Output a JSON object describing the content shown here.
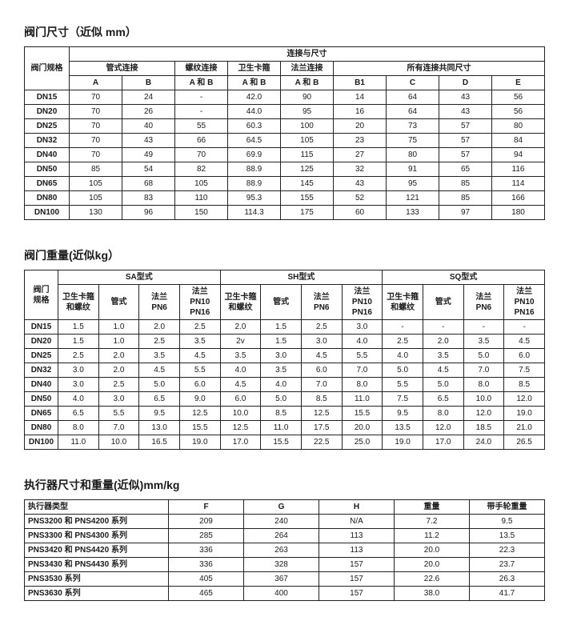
{
  "section1": {
    "title": "阀门尺寸（近似 mm）",
    "corner": "阀门规格",
    "group_top": "连接与尺寸",
    "groups": [
      "管式连接",
      "螺纹连接",
      "卫生卡箍",
      "法兰连接",
      "所有连接共同尺寸"
    ],
    "sub": [
      "A",
      "B",
      "A 和 B",
      "A 和 B",
      "A 和 B",
      "B1",
      "C",
      "D",
      "E"
    ],
    "rows": [
      [
        "DN15",
        "70",
        "24",
        "-",
        "42.0",
        "90",
        "14",
        "64",
        "43",
        "56"
      ],
      [
        "DN20",
        "70",
        "26",
        "-",
        "44.0",
        "95",
        "16",
        "64",
        "43",
        "56"
      ],
      [
        "DN25",
        "70",
        "40",
        "55",
        "60.3",
        "100",
        "20",
        "73",
        "57",
        "80"
      ],
      [
        "DN32",
        "70",
        "43",
        "66",
        "64.5",
        "105",
        "23",
        "75",
        "57",
        "84"
      ],
      [
        "DN40",
        "70",
        "49",
        "70",
        "69.9",
        "115",
        "27",
        "80",
        "57",
        "94"
      ],
      [
        "DN50",
        "85",
        "54",
        "82",
        "88.9",
        "125",
        "32",
        "91",
        "65",
        "116"
      ],
      [
        "DN65",
        "105",
        "68",
        "105",
        "88.9",
        "145",
        "43",
        "95",
        "85",
        "114"
      ],
      [
        "DN80",
        "105",
        "83",
        "110",
        "95.3",
        "155",
        "52",
        "121",
        "85",
        "166"
      ],
      [
        "DN100",
        "130",
        "96",
        "150",
        "114.3",
        "175",
        "60",
        "133",
        "97",
        "180"
      ]
    ]
  },
  "section2": {
    "title": "阀门重量(近似kg）",
    "corner": "阀门\n规格",
    "groups": [
      "SA型式",
      "SH型式",
      "SQ型式"
    ],
    "sub": [
      "卫生卡箍和螺纹",
      "管式",
      "法兰 PN6",
      "法兰 PN10 PN16",
      "卫生卡箍和螺纹",
      "管式",
      "法兰 PN6",
      "法兰 PN10 PN16",
      "卫生卡箍和螺纹",
      "管式",
      "法兰 PN6",
      "法兰 PN10 PN16"
    ],
    "rows": [
      [
        "DN15",
        "1.5",
        "1.0",
        "2.0",
        "2.5",
        "2.0",
        "1.5",
        "2.5",
        "3.0",
        "-",
        "-",
        "-",
        "-"
      ],
      [
        "DN20",
        "1.5",
        "1.0",
        "2.5",
        "3.5",
        "2v",
        "1.5",
        "3.0",
        "4.0",
        "2.5",
        "2.0",
        "3.5",
        "4.5"
      ],
      [
        "DN25",
        "2.5",
        "2.0",
        "3.5",
        "4.5",
        "3.5",
        "3.0",
        "4.5",
        "5.5",
        "4.0",
        "3.5",
        "5.0",
        "6.0"
      ],
      [
        "DN32",
        "3.0",
        "2.0",
        "4.5",
        "5.5",
        "4.0",
        "3.5",
        "6.0",
        "7.0",
        "5.0",
        "4.5",
        "7.0",
        "7.5"
      ],
      [
        "DN40",
        "3.0",
        "2.5",
        "5.0",
        "6.0",
        "4.5",
        "4.0",
        "7.0",
        "8.0",
        "5.5",
        "5.0",
        "8.0",
        "8.5"
      ],
      [
        "DN50",
        "4.0",
        "3.0",
        "6.5",
        "9.0",
        "6.0",
        "5.0",
        "8.5",
        "11.0",
        "7.5",
        "6.5",
        "10.0",
        "12.0"
      ],
      [
        "DN65",
        "6.5",
        "5.5",
        "9.5",
        "12.5",
        "10.0",
        "8.5",
        "12.5",
        "15.5",
        "9.5",
        "8.0",
        "12.0",
        "19.0"
      ],
      [
        "DN80",
        "8.0",
        "7.0",
        "13.0",
        "15.5",
        "12.5",
        "11.0",
        "17.5",
        "20.0",
        "13.5",
        "12.0",
        "18.5",
        "21.0"
      ],
      [
        "DN100",
        "11.0",
        "10.0",
        "16.5",
        "19.0",
        "17.0",
        "15.5",
        "22.5",
        "25.0",
        "19.0",
        "17.0",
        "24.0",
        "26.5"
      ]
    ]
  },
  "section3": {
    "title": "执行器尺寸和重量(近似)mm/kg",
    "columns": [
      "执行器类型",
      "F",
      "G",
      "H",
      "重量",
      "带手轮重量"
    ],
    "rows": [
      [
        "PNS3200 和 PNS4200 系列",
        "209",
        "240",
        "N/A",
        "7.2",
        "9.5"
      ],
      [
        "PNS3300 和 PNS4300 系列",
        "285",
        "264",
        "113",
        "11.2",
        "13.5"
      ],
      [
        "PNS3420 和 PNS4420 系列",
        "336",
        "263",
        "113",
        "20.0",
        "22.3"
      ],
      [
        "PNS3430 和 PNS4430 系列",
        "336",
        "328",
        "157",
        "20.0",
        "23.7"
      ],
      [
        "PNS3530 系列",
        "405",
        "367",
        "157",
        "22.6",
        "26.3"
      ],
      [
        "PNS3630 系列",
        "465",
        "400",
        "157",
        "38.0",
        "41.7"
      ]
    ]
  }
}
